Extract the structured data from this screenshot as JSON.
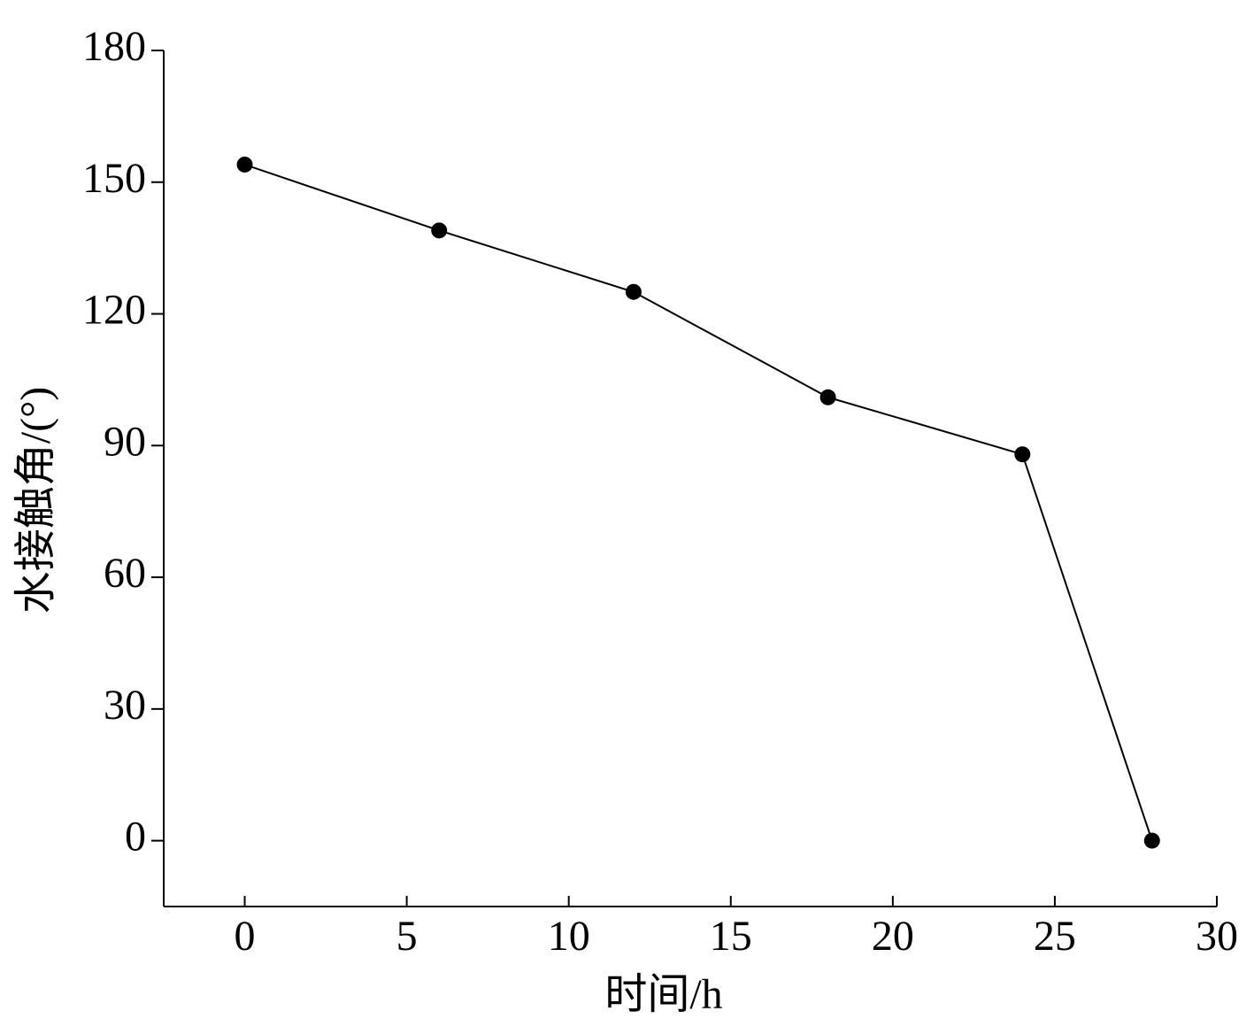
{
  "chart_data": {
    "type": "line",
    "x_label": "时间/h",
    "y_label": "水接触角/(°)",
    "x": [
      0,
      6,
      12,
      18,
      24,
      28
    ],
    "series": [
      {
        "color": "#000000",
        "values": [
          154,
          139,
          125,
          101,
          88,
          0
        ]
      }
    ],
    "xlim": [
      -2.5,
      30
    ],
    "xticks": [
      0,
      5,
      10,
      15,
      20,
      25,
      30
    ],
    "ylim": [
      -15,
      180
    ],
    "yticks": [
      0,
      30,
      60,
      90,
      120,
      150,
      180
    ],
    "grid": false
  }
}
